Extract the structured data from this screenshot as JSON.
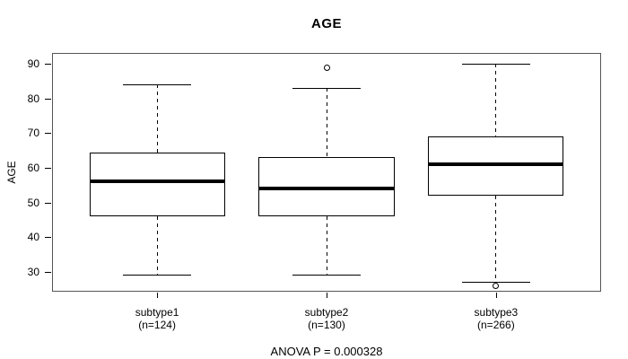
{
  "chart_data": {
    "type": "boxplot",
    "title": "AGE",
    "ylabel": "AGE",
    "xlabel": "",
    "annotation": "ANOVA P = 0.000328",
    "yticks": [
      30,
      40,
      50,
      60,
      70,
      80,
      90
    ],
    "ylim": [
      24.2,
      93.2
    ],
    "grid": false,
    "legend": "none",
    "groups": [
      {
        "label": "subtype1",
        "count_label": "(n=124)",
        "stats": {
          "lower_whisker": 29,
          "q1": 46,
          "median": 56,
          "q3": 64.5,
          "upper_whisker": 84
        },
        "outliers": []
      },
      {
        "label": "subtype2",
        "count_label": "(n=130)",
        "stats": {
          "lower_whisker": 29,
          "q1": 46,
          "median": 54,
          "q3": 63,
          "upper_whisker": 83
        },
        "outliers": [
          89
        ]
      },
      {
        "label": "subtype3",
        "count_label": "(n=266)",
        "stats": {
          "lower_whisker": 27,
          "q1": 52,
          "median": 61,
          "q3": 69,
          "upper_whisker": 90
        },
        "outliers": [
          26
        ]
      }
    ],
    "colors": {
      "line": "#000000",
      "box_fill": "#ffffff",
      "frame": "#555555",
      "text": "#000000",
      "background": "#ffffff"
    }
  }
}
